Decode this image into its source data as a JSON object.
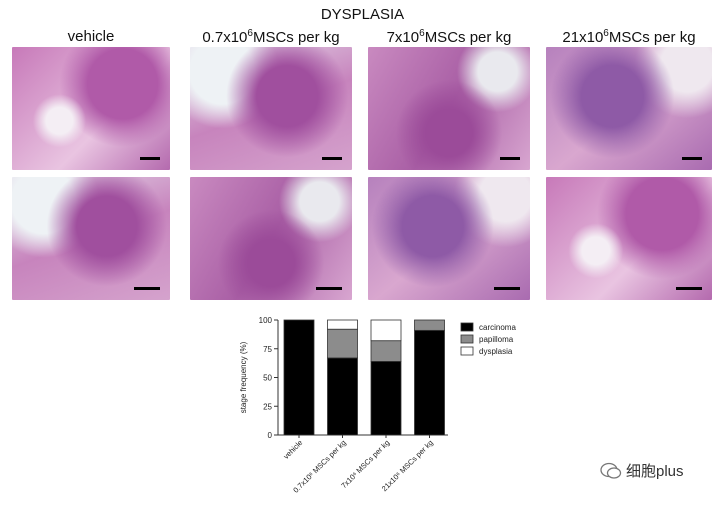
{
  "figure_title": "DYSPLASIA",
  "columns": [
    {
      "base": "vehicle",
      "sup": ""
    },
    {
      "base": "0.7x10",
      "sup": "6",
      "rest": "MSCs per kg"
    },
    {
      "base": "7x10",
      "sup": "6",
      "rest": "MSCs per kg"
    },
    {
      "base": "21x10",
      "sup": "6",
      "rest": "MSCs per kg"
    }
  ],
  "watermark": "细胞plus",
  "chart_data": {
    "type": "bar",
    "stacked": true,
    "categories": [
      "vehicle",
      "0.7x10⁶ MSCs per kg",
      "7x10⁶ MSCs per kg",
      "21x10⁶ MSCs per kg"
    ],
    "series": [
      {
        "name": "carcinoma",
        "color": "#000000",
        "values": [
          100,
          67,
          64,
          91
        ]
      },
      {
        "name": "papilloma",
        "color": "#8c8c8c",
        "values": [
          0,
          25,
          18,
          9
        ]
      },
      {
        "name": "dysplasia",
        "color": "#ffffff",
        "values": [
          0,
          8,
          18,
          0
        ]
      }
    ],
    "ylabel": "stage frequency (%)",
    "ylim": [
      0,
      100
    ],
    "yticks": [
      0,
      25,
      50,
      75,
      100
    ],
    "legend": "right",
    "grid": false
  }
}
